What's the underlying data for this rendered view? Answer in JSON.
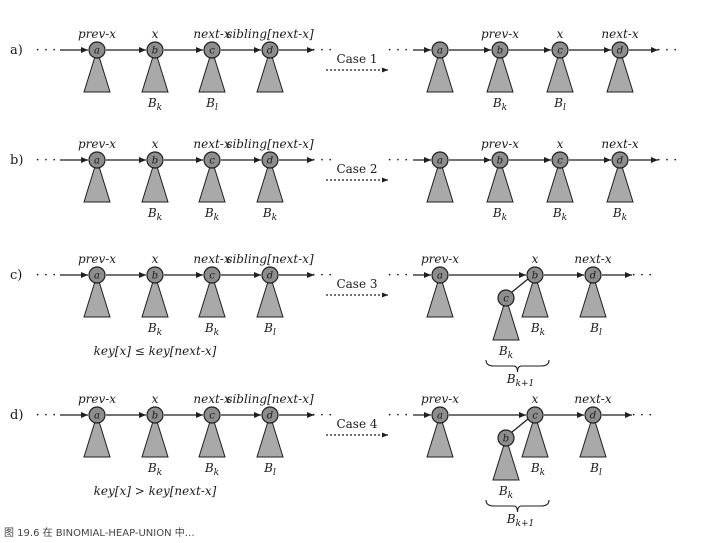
{
  "row_labels": [
    "a)",
    "b)",
    "c)",
    "d)"
  ],
  "top_labels": {
    "prev": "prev-x",
    "x": "x",
    "next": "next-x",
    "sibling": "sibling[next-x]"
  },
  "case_labels": [
    "Case 1",
    "Case 2",
    "Case 3",
    "Case 4"
  ],
  "node_letters": [
    "a",
    "b",
    "c",
    "d"
  ],
  "subtrees": {
    "bk": "B",
    "k": "k",
    "l": "l",
    "k1": "k+1"
  },
  "conditions": {
    "c": "key[x] ≤ key[next-x]",
    "d": "key[x] > key[next-x]"
  },
  "dots": "· · ·",
  "caption": "图 19.6  在 BINOMIAL-HEAP-UNION 中…",
  "colors": {
    "line": "#1f1f1f",
    "tree_fill": "#a9a9a9",
    "node_fill": "#8d8d8d"
  }
}
